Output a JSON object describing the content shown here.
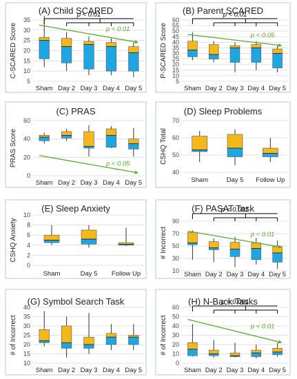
{
  "chart_data": [
    {
      "type": "boxplot",
      "panel_title": "(A) Child SCARED",
      "ylabel": "C-SCARED Score",
      "ylim": [
        5,
        35
      ],
      "yticks": [
        5,
        10,
        15,
        20,
        25,
        30,
        35
      ],
      "categories": [
        "Sham",
        "Day 2",
        "Day 3",
        "Day 4",
        "Day 5"
      ],
      "boxes": [
        {
          "min": 12,
          "q1": 16,
          "median": 25,
          "q3": 26.5,
          "max": 37
        },
        {
          "min": 10,
          "q1": 14,
          "median": 22,
          "q3": 26,
          "max": 29
        },
        {
          "min": 8,
          "q1": 11,
          "median": 23,
          "q3": 24.5,
          "max": 27
        },
        {
          "min": 8,
          "q1": 10,
          "median": 22,
          "q3": 24,
          "max": 26
        },
        {
          "min": 7,
          "q1": 10,
          "median": 19,
          "q3": 22,
          "max": 24
        }
      ],
      "annotations": [
        {
          "kind": "bracket",
          "text": "p < 0.01",
          "color": "black",
          "from": 0,
          "to": [
            1,
            2,
            3,
            4
          ]
        },
        {
          "kind": "trend",
          "text": "p < 0.01",
          "color": "green",
          "start": [
            0,
            32.5
          ],
          "end": [
            4,
            24
          ]
        }
      ]
    },
    {
      "type": "boxplot",
      "panel_title": "(B) Parent SCARED",
      "ylabel": "P-SCARED Score",
      "ylim": [
        5,
        60
      ],
      "yticks": [
        5,
        10,
        15,
        20,
        25,
        30,
        35,
        40,
        45,
        50,
        55,
        60
      ],
      "categories": [
        "Sham",
        "Day 2",
        "Day 3",
        "Day 4",
        "Day 5"
      ],
      "boxes": [
        {
          "min": 24,
          "q1": 27,
          "median": 33,
          "q3": 41,
          "max": 49
        },
        {
          "min": 22,
          "q1": 25,
          "median": 29,
          "q3": 38,
          "max": 41
        },
        {
          "min": 13,
          "q1": 22,
          "median": 35,
          "q3": 37,
          "max": 40
        },
        {
          "min": 15,
          "q1": 22,
          "median": 35,
          "q3": 38,
          "max": 41
        },
        {
          "min": 13,
          "q1": 17,
          "median": 30,
          "q3": 34,
          "max": 37
        }
      ],
      "annotations": [
        {
          "kind": "bracket",
          "text": "p < 0.01",
          "color": "black",
          "from": 0,
          "to": [
            1,
            2,
            3,
            4
          ]
        },
        {
          "kind": "trend",
          "text": "p < 0.05",
          "color": "green",
          "start": [
            0,
            47
          ],
          "end": [
            4,
            37
          ]
        }
      ]
    },
    {
      "type": "boxplot",
      "panel_title": "(C) PRAS",
      "ylabel": "PRAS Score",
      "ylim": [
        0,
        60
      ],
      "yticks": [
        0,
        20,
        40,
        60
      ],
      "categories": [
        "Sham",
        "Day 2",
        "Day 3",
        "Day 4",
        "Day 5"
      ],
      "boxes": [
        {
          "min": 35,
          "q1": 38,
          "median": 42,
          "q3": 44,
          "max": 47
        },
        {
          "min": 38,
          "q1": 41,
          "median": 44,
          "q3": 48,
          "max": 51
        },
        {
          "min": 21,
          "q1": 30,
          "median": 32,
          "q3": 48,
          "max": 55
        },
        {
          "min": 30,
          "q1": 31,
          "median": 44,
          "q3": 51,
          "max": 54
        },
        {
          "min": 21,
          "q1": 29,
          "median": 35,
          "q3": 40,
          "max": 52
        }
      ],
      "annotations": [
        {
          "kind": "trend",
          "text": "p < 0.05",
          "color": "green",
          "start": [
            0,
            22
          ],
          "end": [
            4,
            3
          ]
        }
      ]
    },
    {
      "type": "boxplot",
      "panel_title": "(D) Sleep Problems",
      "ylabel": "CSHQ Total",
      "ylim": [
        40,
        70
      ],
      "yticks": [
        40,
        50,
        60,
        70
      ],
      "categories": [
        "Sham",
        "Day 5",
        "Follow Up"
      ],
      "boxes": [
        {
          "min": 46,
          "q1": 52,
          "median": 53,
          "q3": 61,
          "max": 64
        },
        {
          "min": 44,
          "q1": 49,
          "median": 54,
          "q3": 62,
          "max": 65
        },
        {
          "min": 46,
          "q1": 49,
          "median": 51,
          "q3": 54,
          "max": 60
        }
      ],
      "annotations": []
    },
    {
      "type": "boxplot",
      "panel_title": "(E) Sleep Anxiety",
      "ylabel": "CSHQ Anxiety",
      "ylim": [
        0,
        10
      ],
      "yticks": [
        0,
        2,
        4,
        6,
        8,
        10
      ],
      "categories": [
        "Sham",
        "Day 5",
        "Follow Up"
      ],
      "boxes": [
        {
          "min": 4,
          "q1": 4.5,
          "median": 5,
          "q3": 6,
          "max": 8
        },
        {
          "min": 3.5,
          "q1": 4.2,
          "median": 5.2,
          "q3": 7,
          "max": 8
        },
        {
          "min": 3.8,
          "q1": 4,
          "median": 4.2,
          "q3": 4.5,
          "max": 7.5
        }
      ],
      "annotations": []
    },
    {
      "type": "boxplot",
      "panel_title": "(F) PASAT Task",
      "ylabel": "# Incorrect",
      "ylim": [
        10,
        100
      ],
      "yticks": [
        10,
        30,
        50,
        70,
        90
      ],
      "categories": [
        "Sham",
        "Day 2",
        "Day 3",
        "Day 4",
        "Day 5"
      ],
      "boxes": [
        {
          "min": 28,
          "q1": 52,
          "median": 55,
          "q3": 72,
          "max": 75
        },
        {
          "min": 24,
          "q1": 44,
          "median": 47,
          "q3": 57,
          "max": 62
        },
        {
          "min": 16,
          "q1": 33,
          "median": 45,
          "q3": 56,
          "max": 65
        },
        {
          "min": 20,
          "q1": 28,
          "median": 46,
          "q3": 55,
          "max": 63
        },
        {
          "min": 13,
          "q1": 24,
          "median": 39,
          "q3": 49,
          "max": 59
        }
      ],
      "annotations": [
        {
          "kind": "bracket",
          "text": "p < 0.001",
          "color": "black",
          "from": 0,
          "to": [
            1,
            2,
            3,
            4
          ]
        },
        {
          "kind": "trend",
          "text": "p < 0.01",
          "color": "green",
          "start": [
            0,
            74
          ],
          "end": [
            4,
            48
          ]
        }
      ]
    },
    {
      "type": "boxplot",
      "panel_title": "(G) Symbol Search Task",
      "ylabel": "# of Incorrect",
      "ylim": [
        10,
        40
      ],
      "yticks": [
        10,
        15,
        20,
        25,
        30,
        35,
        40
      ],
      "categories": [
        "Sham",
        "Day 2",
        "Day 3",
        "Day 4",
        "Day 5"
      ],
      "boxes": [
        {
          "min": 19,
          "q1": 21,
          "median": 22,
          "q3": 28,
          "max": 38
        },
        {
          "min": 13,
          "q1": 18,
          "median": 21,
          "q3": 30,
          "max": 35
        },
        {
          "min": 15,
          "q1": 18,
          "median": 20,
          "q3": 24,
          "max": 37
        },
        {
          "min": 17,
          "q1": 20,
          "median": 24,
          "q3": 26,
          "max": 31
        },
        {
          "min": 17,
          "q1": 20,
          "median": 24,
          "q3": 25,
          "max": 31
        }
      ],
      "annotations": []
    },
    {
      "type": "boxplot",
      "panel_title": "(H) N-Back Tasks",
      "ylabel": "# of Incorrect",
      "ylim": [
        0,
        60
      ],
      "yticks": [
        0,
        10,
        20,
        30,
        40,
        50,
        60
      ],
      "categories": [
        "Sham",
        "Day 2",
        "Day 3",
        "Day 4",
        "Day 5"
      ],
      "boxes": [
        {
          "min": 7,
          "q1": 8,
          "median": 15,
          "q3": 22,
          "max": 42
        },
        {
          "min": 6,
          "q1": 8,
          "median": 10,
          "q3": 14,
          "max": 25
        },
        {
          "min": 6,
          "q1": 7,
          "median": 8,
          "q3": 11,
          "max": 22
        },
        {
          "min": 5,
          "q1": 7,
          "median": 11,
          "q3": 14,
          "max": 20
        },
        {
          "min": 7,
          "q1": 9,
          "median": 12,
          "q3": 16,
          "max": 22
        }
      ],
      "annotations": [
        {
          "kind": "bracket",
          "text": "p < 0.001",
          "color": "black",
          "from": 0,
          "to": [
            1,
            2,
            3,
            4
          ]
        },
        {
          "kind": "trend",
          "text": "p < 0.01",
          "color": "green",
          "start": [
            0,
            47
          ],
          "end": [
            4,
            22
          ]
        }
      ]
    }
  ]
}
